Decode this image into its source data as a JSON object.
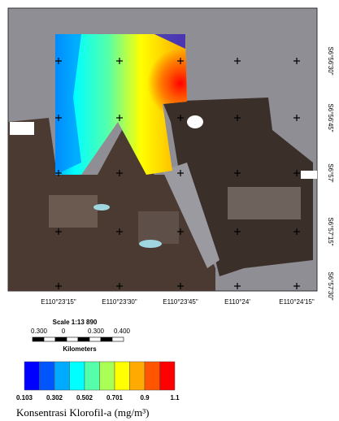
{
  "map": {
    "lon_labels": [
      "E110°23'15\"",
      "E110°23'30\"",
      "E110°23'45\"",
      "E110°24'",
      "E110°24'15\""
    ],
    "lat_labels": [
      "S6°56'30\"",
      "S6°56'45\"",
      "S6°57'",
      "S6°57'15\"",
      "S6°57'30\""
    ],
    "scale": {
      "title": "Scale 1:13 890",
      "labels": [
        "0.300",
        "0",
        "0.300",
        "0.400"
      ],
      "unit": "Kilometers"
    },
    "legend": {
      "labels": [
        "0.103",
        "0.302",
        "0.502",
        "0.701",
        "0.9",
        "1.1"
      ],
      "colors": [
        "#0000ff",
        "#0055ff",
        "#00aaff",
        "#00ffff",
        "#55ffaa",
        "#aaff55",
        "#ffff00",
        "#ffaa00",
        "#ff5500",
        "#ff0000"
      ],
      "title": "Konsentrasi Klorofil-a (mg/m³)"
    }
  }
}
